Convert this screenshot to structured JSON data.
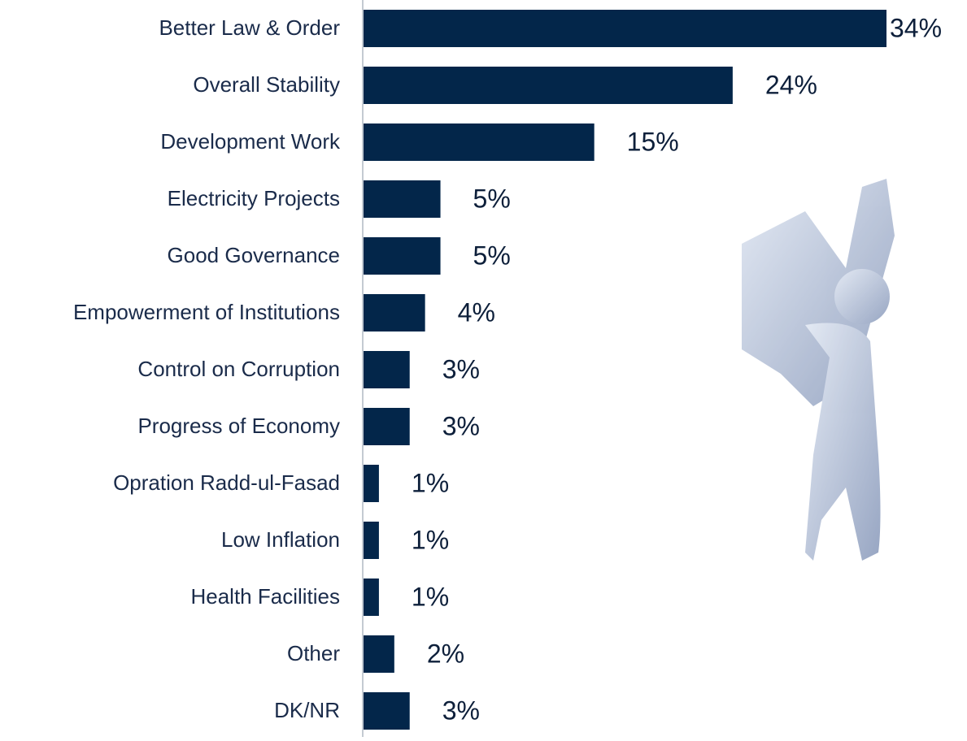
{
  "chart_data": {
    "type": "hbar",
    "categories": [
      "Better Law & Order",
      "Overall Stability",
      "Development Work",
      "Electricity Projects",
      "Good Governance",
      "Empowerment of Institutions",
      "Control on Corruption",
      "Progress of Economy",
      "Opration Radd-ul-Fasad",
      "Low Inflation",
      "Health Facilities",
      "Other",
      "DK/NR"
    ],
    "values": [
      34,
      24,
      15,
      5,
      5,
      4,
      3,
      3,
      1,
      1,
      1,
      2,
      3
    ],
    "value_labels": [
      "34%",
      "24%",
      "15%",
      "5%",
      "5%",
      "4%",
      "3%",
      "3%",
      "1%",
      "1%",
      "1%",
      "2%",
      "3%"
    ],
    "color": "#03264a"
  }
}
